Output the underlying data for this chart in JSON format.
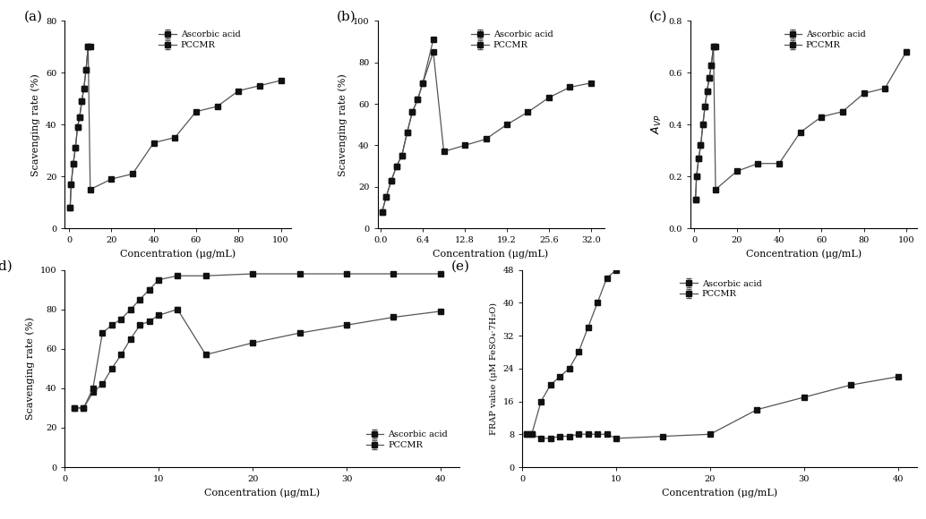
{
  "panel_a": {
    "xlabel": "Concentration (μg/mL)",
    "ylabel": "Scavenging rate (%)",
    "xlim": [
      -2,
      105
    ],
    "ylim": [
      0,
      80
    ],
    "xticks": [
      0,
      20,
      40,
      60,
      80,
      100
    ],
    "yticks": [
      0,
      20,
      40,
      60,
      80
    ],
    "ascorbic_x": [
      0.5,
      1,
      2,
      3,
      4,
      5,
      6,
      7,
      8,
      9,
      10
    ],
    "ascorbic_y": [
      8,
      17,
      25,
      31,
      39,
      43,
      49,
      54,
      61,
      70,
      70
    ],
    "ascorbic_err": [
      0.4,
      0.4,
      0.4,
      0.4,
      0.4,
      0.4,
      0.4,
      0.4,
      0.4,
      0.4,
      0.4
    ],
    "pccmr_x": [
      0.5,
      1,
      2,
      3,
      4,
      5,
      6,
      7,
      8,
      9,
      10,
      20,
      30,
      40,
      50,
      60,
      70,
      80,
      90,
      100
    ],
    "pccmr_y": [
      8,
      17,
      25,
      31,
      39,
      43,
      49,
      54,
      61,
      70,
      15,
      19,
      21,
      33,
      35,
      45,
      47,
      53,
      55,
      57
    ],
    "pccmr_err": [
      0.4,
      0.4,
      0.4,
      0.4,
      0.4,
      0.4,
      0.4,
      0.4,
      0.4,
      0.4,
      0.4,
      0.5,
      0.5,
      0.5,
      0.5,
      0.5,
      0.5,
      0.5,
      0.5,
      0.5
    ]
  },
  "panel_b": {
    "xlabel": "Concentration (μg/mL)",
    "ylabel": "Scavenging rate (%)",
    "xlim": [
      -0.5,
      34
    ],
    "ylim": [
      0,
      100
    ],
    "xticks": [
      0.0,
      6.4,
      12.8,
      19.2,
      25.6,
      32.0
    ],
    "xticklabels": [
      "0.0",
      "6.4",
      "12.8",
      "19.2",
      "25.6",
      "32.0"
    ],
    "yticks": [
      0,
      20,
      40,
      60,
      80,
      100
    ],
    "ascorbic_x": [
      0.2,
      0.8,
      1.6,
      2.4,
      3.2,
      4.0,
      4.8,
      5.6,
      6.4,
      8.0
    ],
    "ascorbic_y": [
      8,
      15,
      23,
      30,
      35,
      46,
      56,
      62,
      70,
      91
    ],
    "ascorbic_err": [
      0.4,
      0.4,
      0.4,
      0.4,
      0.4,
      0.4,
      0.4,
      0.4,
      0.4,
      0.4
    ],
    "pccmr_x": [
      0.2,
      0.8,
      1.6,
      2.4,
      3.2,
      4.0,
      4.8,
      5.6,
      6.4,
      8.0,
      9.6,
      12.8,
      16.0,
      19.2,
      22.4,
      25.6,
      28.8,
      32.0
    ],
    "pccmr_y": [
      8,
      15,
      23,
      30,
      35,
      46,
      56,
      62,
      70,
      85,
      37,
      40,
      43,
      50,
      56,
      63,
      68,
      70
    ],
    "pccmr_err": [
      0.4,
      0.4,
      0.4,
      0.4,
      0.4,
      0.4,
      0.4,
      0.4,
      0.4,
      0.4,
      0.5,
      0.5,
      0.5,
      0.5,
      0.5,
      0.5,
      0.5,
      0.5
    ]
  },
  "panel_c": {
    "xlabel": "Concentration (μg/mL)",
    "ylabel": "Avp",
    "xlim": [
      -2,
      105
    ],
    "ylim": [
      0.0,
      0.8
    ],
    "xticks": [
      0,
      20,
      40,
      60,
      80,
      100
    ],
    "yticks": [
      0.0,
      0.2,
      0.4,
      0.6,
      0.8
    ],
    "ascorbic_x": [
      0.5,
      1,
      2,
      3,
      4,
      5,
      6,
      7,
      8,
      9,
      10
    ],
    "ascorbic_y": [
      0.11,
      0.2,
      0.27,
      0.32,
      0.4,
      0.47,
      0.53,
      0.58,
      0.63,
      0.7,
      0.7
    ],
    "ascorbic_err": [
      0.005,
      0.005,
      0.005,
      0.005,
      0.005,
      0.005,
      0.005,
      0.005,
      0.005,
      0.005,
      0.005
    ],
    "pccmr_x": [
      0.5,
      1,
      2,
      3,
      4,
      5,
      6,
      7,
      8,
      9,
      10,
      20,
      30,
      40,
      50,
      60,
      70,
      80,
      90,
      100
    ],
    "pccmr_y": [
      0.11,
      0.2,
      0.27,
      0.32,
      0.4,
      0.47,
      0.53,
      0.58,
      0.63,
      0.7,
      0.15,
      0.22,
      0.25,
      0.25,
      0.37,
      0.43,
      0.45,
      0.52,
      0.54,
      0.68
    ],
    "pccmr_err": [
      0.005,
      0.005,
      0.005,
      0.005,
      0.005,
      0.005,
      0.005,
      0.005,
      0.005,
      0.005,
      0.005,
      0.005,
      0.005,
      0.005,
      0.008,
      0.008,
      0.008,
      0.008,
      0.008,
      0.01
    ]
  },
  "panel_d": {
    "xlabel": "Concentration (μg/mL)",
    "ylabel": "Scavenging rate (%)",
    "xlim": [
      0,
      42
    ],
    "ylim": [
      0,
      100
    ],
    "xticks": [
      0,
      10,
      20,
      30,
      40
    ],
    "yticks": [
      0,
      20,
      40,
      60,
      80,
      100
    ],
    "ascorbic_x": [
      1,
      2,
      3,
      4,
      5,
      6,
      7,
      8,
      9,
      10,
      12,
      15,
      20,
      25,
      30,
      35,
      40
    ],
    "ascorbic_y": [
      30,
      30,
      40,
      68,
      72,
      75,
      80,
      85,
      90,
      95,
      97,
      97,
      98,
      98,
      98,
      98,
      98
    ],
    "ascorbic_err": [
      1,
      1,
      1,
      1,
      1,
      1,
      1,
      1,
      1,
      1,
      0.5,
      0.5,
      0.5,
      0.5,
      0.5,
      0.5,
      0.5
    ],
    "pccmr_x": [
      1,
      2,
      3,
      4,
      5,
      6,
      7,
      8,
      9,
      10,
      12,
      15,
      20,
      25,
      30,
      35,
      40
    ],
    "pccmr_y": [
      30,
      30,
      38,
      42,
      50,
      57,
      65,
      72,
      74,
      77,
      80,
      57,
      63,
      68,
      72,
      76,
      79
    ],
    "pccmr_err": [
      1,
      1,
      1,
      1,
      1,
      1,
      1,
      1,
      1,
      1,
      1,
      1,
      1,
      1,
      1,
      1,
      1
    ]
  },
  "panel_e": {
    "xlabel": "Concentration (μg/mL)",
    "ylabel": "FRAP value (μM FeSO₄·7H₂O)",
    "xlim": [
      0,
      42
    ],
    "ylim": [
      0,
      48
    ],
    "xticks": [
      0,
      10,
      20,
      30,
      40
    ],
    "yticks": [
      0,
      8,
      16,
      24,
      32,
      40,
      48
    ],
    "ascorbic_x": [
      0.5,
      1,
      2,
      3,
      4,
      5,
      6,
      7,
      8,
      9,
      10
    ],
    "ascorbic_y": [
      8,
      8,
      16,
      20,
      22,
      24,
      28,
      34,
      40,
      46,
      48
    ],
    "ascorbic_err": [
      0.3,
      0.3,
      0.3,
      0.3,
      0.3,
      0.3,
      0.3,
      0.3,
      0.3,
      0.3,
      0.3
    ],
    "pccmr_x": [
      0.5,
      1,
      2,
      3,
      4,
      5,
      6,
      7,
      8,
      9,
      10,
      15,
      20,
      25,
      30,
      35,
      40
    ],
    "pccmr_y": [
      8,
      8,
      7,
      7,
      7.5,
      7.5,
      8,
      8,
      8,
      8,
      7,
      7.5,
      8,
      14,
      17,
      20,
      22
    ],
    "pccmr_err": [
      0.3,
      0.3,
      0.3,
      0.3,
      0.3,
      0.3,
      0.3,
      0.3,
      0.3,
      0.3,
      0.3,
      0.3,
      0.3,
      0.3,
      0.3,
      0.3,
      0.3
    ]
  },
  "line_color": "#555555",
  "marker_size": 4,
  "marker_color": "#111111",
  "line_width": 0.9,
  "font_family": "serif"
}
